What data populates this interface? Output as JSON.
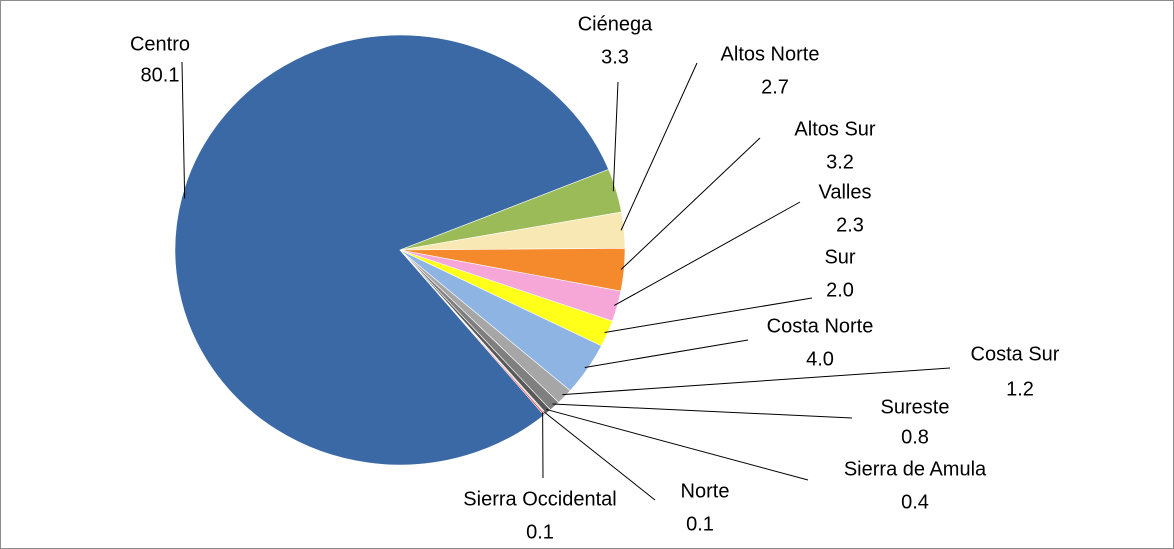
{
  "chart_data": {
    "type": "pie",
    "categories": [
      "Centro",
      "Ciénega",
      "Altos Norte",
      "Altos Sur",
      "Valles",
      "Sur",
      "Costa Norte",
      "Costa Sur",
      "Sureste",
      "Sierra de Amula",
      "Norte",
      "Sierra Occidental"
    ],
    "values": [
      80.1,
      3.3,
      2.7,
      3.2,
      2.3,
      2.0,
      4.0,
      1.2,
      0.8,
      0.4,
      0.1,
      0.1
    ],
    "value_labels": [
      "80.1",
      "3.3",
      "2.7",
      "3.2",
      "2.3",
      "2.0",
      "4.0",
      "1.2",
      "0.8",
      "0.4",
      "0.1",
      "0.1"
    ],
    "colors": [
      "#3b69a6",
      "#9bbb59",
      "#f8e8b4",
      "#f58a2c",
      "#f6a7d8",
      "#ffff1a",
      "#8db4e2",
      "#a6a6a6",
      "#7f7f7f",
      "#595959",
      "#c8c8c8",
      "#e0201c"
    ]
  }
}
